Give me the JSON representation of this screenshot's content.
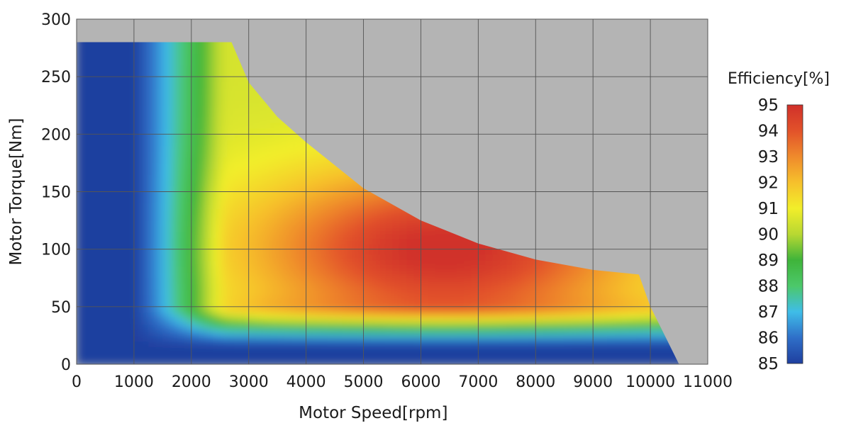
{
  "chart_data": {
    "type": "heatmap",
    "title": "",
    "xlabel": "Motor Speed[rpm]",
    "ylabel": "Motor Torque[Nm]",
    "xlim": [
      0,
      11000
    ],
    "ylim": [
      0,
      300
    ],
    "x_ticks": [
      "0",
      "1000",
      "2000",
      "3000",
      "4000",
      "5000",
      "6000",
      "7000",
      "8000",
      "9000",
      "10000",
      "11000"
    ],
    "y_ticks": [
      "0",
      "50",
      "100",
      "150",
      "200",
      "250",
      "300"
    ],
    "grid": true,
    "background_color": "#b4b4b4",
    "colorbar": {
      "title": "Efficiency[%]",
      "min": 85,
      "max": 95,
      "ticks": [
        "85",
        "86",
        "87",
        "88",
        "89",
        "90",
        "91",
        "92",
        "93",
        "94",
        "95"
      ],
      "placement": "right",
      "colors": [
        "#1f3f9f",
        "#2f6fc8",
        "#3fbde8",
        "#4cc86a",
        "#3fb43a",
        "#b8d832",
        "#f2ee2a",
        "#f6c02c",
        "#ef8a2c",
        "#e2522a",
        "#d0302a"
      ]
    },
    "operating_envelope": {
      "max_torque_nm": 280,
      "base_speed_rpm": 2700,
      "boundary": [
        [
          0,
          280
        ],
        [
          2700,
          280
        ],
        [
          3000,
          245
        ],
        [
          3500,
          215
        ],
        [
          4000,
          193
        ],
        [
          5000,
          153
        ],
        [
          6000,
          125
        ],
        [
          7000,
          105
        ],
        [
          8000,
          91
        ],
        [
          9000,
          82
        ],
        [
          9800,
          78
        ],
        [
          10000,
          50
        ],
        [
          10300,
          20
        ],
        [
          10500,
          0
        ]
      ]
    },
    "efficiency_regions": [
      {
        "efficiency_pct": 85,
        "description": "below ~1100 rpm and below ~20 Nm"
      },
      {
        "efficiency_pct": 88,
        "description": "band near 1500 rpm and near 25 Nm"
      },
      {
        "efficiency_pct": 90,
        "description": "band near 2000-2700 rpm"
      },
      {
        "efficiency_pct": 92,
        "description": "around 3000 rpm and 40 Nm band"
      },
      {
        "efficiency_pct": 95,
        "description": "peak near 6000-7000 rpm, 90-110 Nm"
      }
    ]
  }
}
